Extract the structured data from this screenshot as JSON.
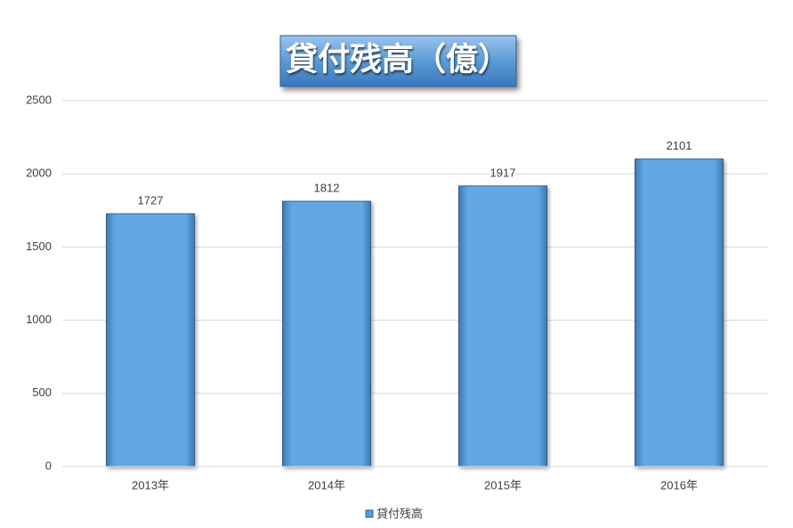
{
  "chart_data": {
    "type": "bar",
    "title": "貸付残高（億）",
    "categories": [
      "2013年",
      "2014年",
      "2015年",
      "2016年"
    ],
    "series": [
      {
        "name": "貸付残高",
        "color": "#5b9bd5",
        "values": [
          1727,
          1812,
          1917,
          2101
        ]
      }
    ],
    "ylim": [
      0,
      2500
    ],
    "yticks": [
      0,
      500,
      1000,
      1500,
      2000,
      2500
    ],
    "grid": true,
    "legend": "bottom"
  }
}
